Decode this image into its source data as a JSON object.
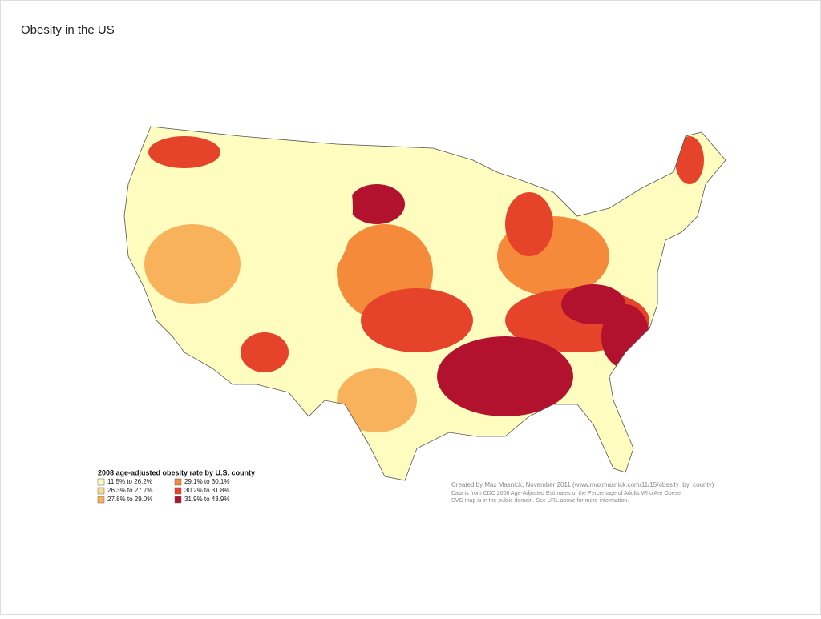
{
  "title": "Obesity in the US",
  "map": {
    "legend": {
      "title": "2008 age-adjusted obesity rate by U.S. county",
      "items": [
        {
          "label": "11.5% to 26.2%",
          "color": "#fefcbf"
        },
        {
          "label": "26.3% to 27.7%",
          "color": "#fcd88a"
        },
        {
          "label": "27.8%  to 29.0%",
          "color": "#f9b25c"
        },
        {
          "label": "29.1% to 30.1%",
          "color": "#f58a3a"
        },
        {
          "label": "30.2% to 31.8%",
          "color": "#e5432a"
        },
        {
          "label": "31.9% to 43.9%",
          "color": "#b3122e"
        }
      ]
    },
    "credits": [
      "Created by Max Masnick, November 2011 (www.maxmasnick.com/11/15/obesity_by_county)",
      "Data is from CDC 2008 Age-Adjusted Estimates of the Percentage of Adults Who Are Obese",
      "SVG map is in the public domain. See URL above for more information."
    ]
  }
}
